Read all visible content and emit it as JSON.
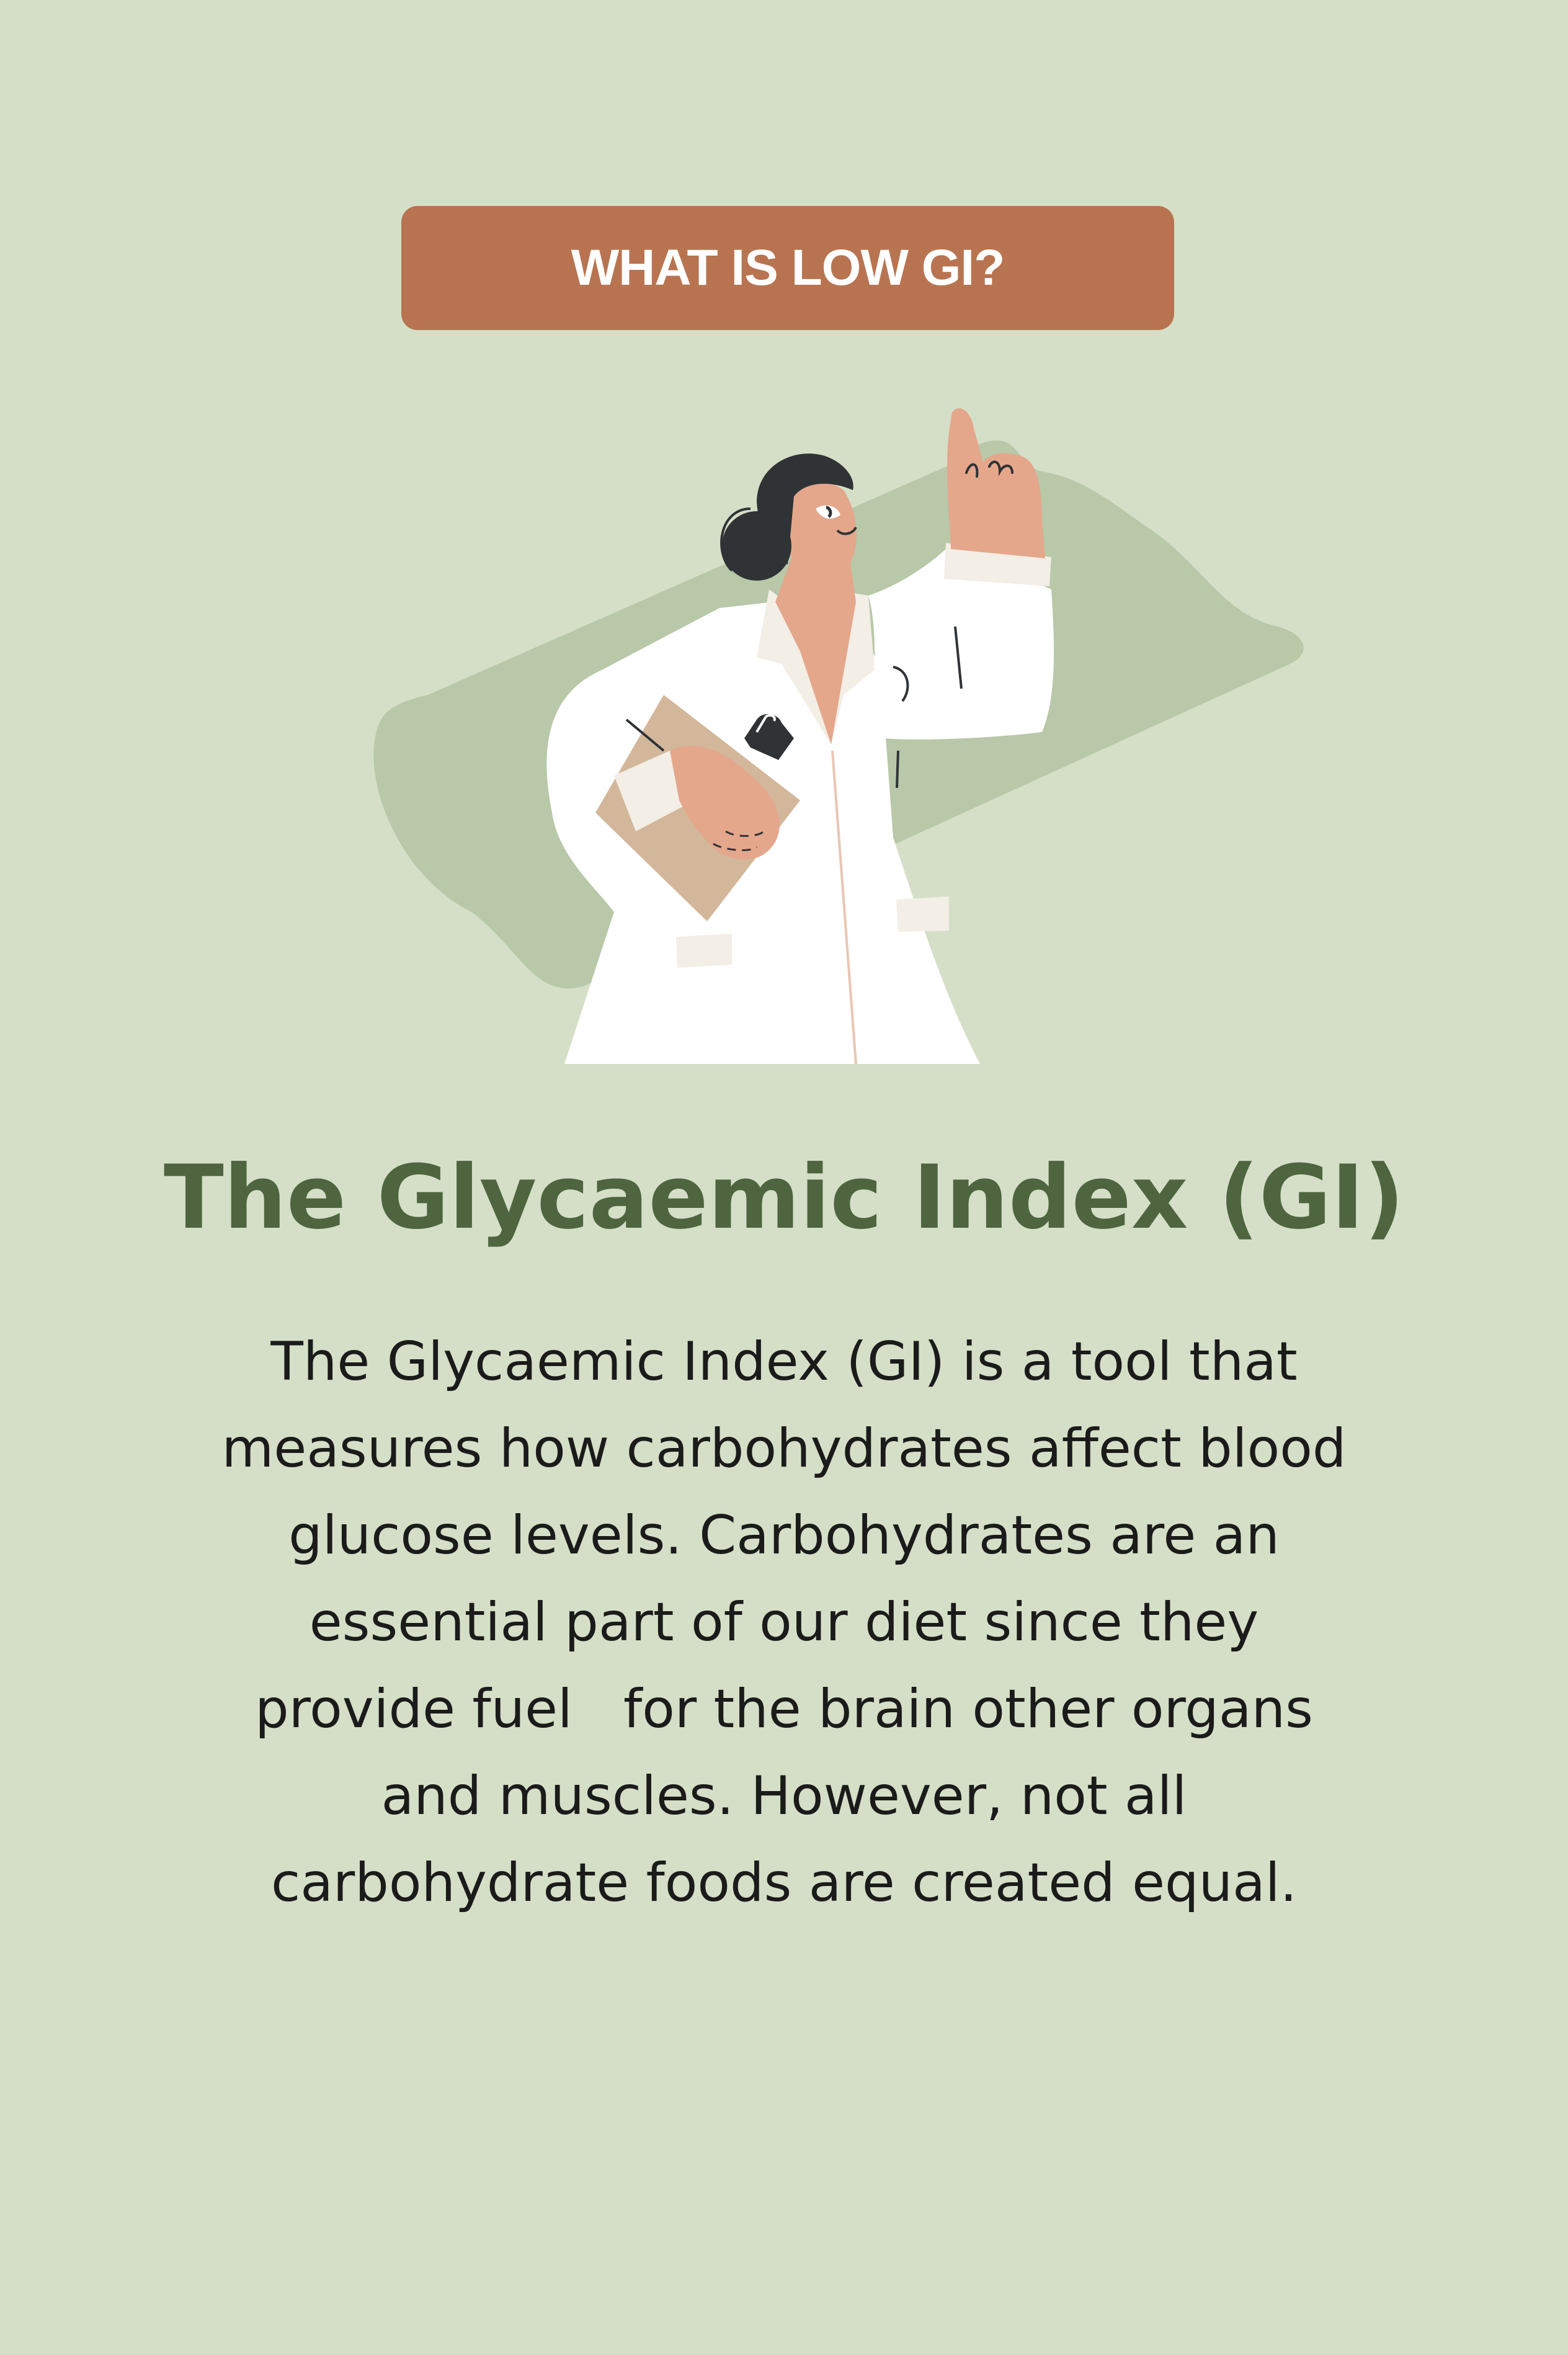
{
  "badge": {
    "label": "WHAT IS LOW GI?"
  },
  "illustration": {
    "icon": "scientist-pointing-icon"
  },
  "heading": "The Glycaemic Index (GI)",
  "body_lines": [
    "The Glycaemic Index (GI) is a tool that",
    "measures how carbohydrates affect blood",
    "glucose levels. Carbohydrates are an",
    "essential part of our diet since they",
    "provide fuel   for the brain other organs",
    "and muscles. However, not all",
    "carbohydrate foods are created equal."
  ],
  "colors": {
    "background": "#d5dfc7",
    "badge": "#b87451",
    "heading": "#4e6540",
    "blob": "#b8c8a8"
  }
}
